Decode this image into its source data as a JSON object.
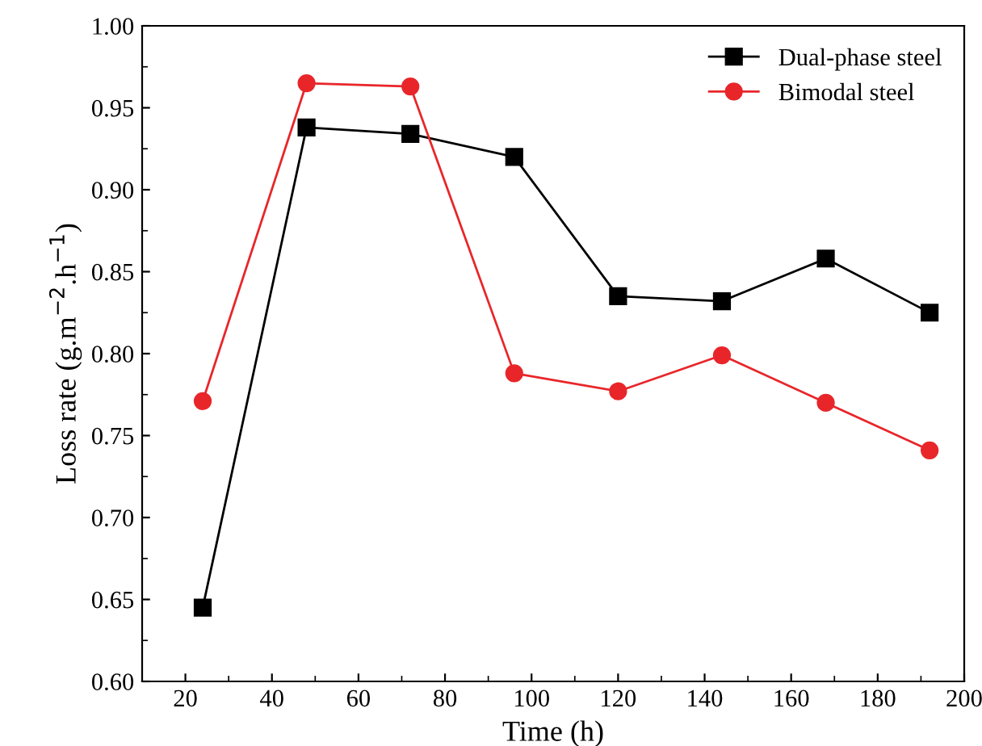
{
  "chart_data": {
    "type": "line",
    "xlabel": "Time (h)",
    "ylabel": "Loss rate (g.m$^{−2}$.h$^{−1}$)",
    "x": [
      24,
      48,
      72,
      96,
      120,
      144,
      168,
      192
    ],
    "series": [
      {
        "name": "Dual-phase steel",
        "color": "#000000",
        "marker": "square",
        "values": [
          0.645,
          0.938,
          0.934,
          0.92,
          0.835,
          0.832,
          0.858,
          0.825
        ]
      },
      {
        "name": "Bimodal steel",
        "color": "#e8262a",
        "marker": "circle",
        "values": [
          0.771,
          0.965,
          0.963,
          0.788,
          0.777,
          0.799,
          0.77,
          0.741
        ]
      }
    ],
    "xlim": [
      10,
      200
    ],
    "xticks": [
      20,
      40,
      60,
      80,
      100,
      120,
      140,
      160,
      180,
      200
    ],
    "ylim": [
      0.6,
      1.0
    ],
    "yticks": [
      {
        "value": 0.6,
        "label": "0.60"
      },
      {
        "value": 0.65,
        "label": "0.65"
      },
      {
        "value": 0.7,
        "label": "0.70"
      },
      {
        "value": 0.75,
        "label": "0.75"
      },
      {
        "value": 0.8,
        "label": "0.80"
      },
      {
        "value": 0.85,
        "label": "0.85"
      },
      {
        "value": 0.9,
        "label": "0.90"
      },
      {
        "value": 0.95,
        "label": "0.95"
      },
      {
        "value": 1.0,
        "label": "1.00"
      }
    ],
    "grid": false,
    "legend": "top right",
    "line_style": "solid"
  }
}
